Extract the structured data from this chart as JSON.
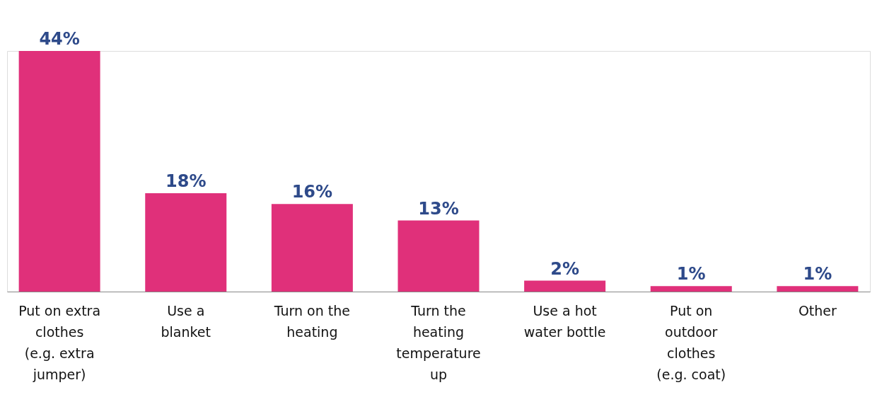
{
  "chart_data": {
    "type": "bar",
    "categories": [
      "Put on extra clothes (e.g. extra jumper)",
      "Use a blanket",
      "Turn on the heating",
      "Turn the heating temperature up",
      "Use a hot water bottle",
      "Put on outdoor clothes (e.g. coat)",
      "Other"
    ],
    "values": [
      44,
      18,
      16,
      13,
      2,
      1,
      1
    ],
    "value_labels": [
      "44%",
      "18%",
      "16%",
      "13%",
      "2%",
      "1%",
      "1%"
    ],
    "color": "#e0307a",
    "grid": false
  }
}
